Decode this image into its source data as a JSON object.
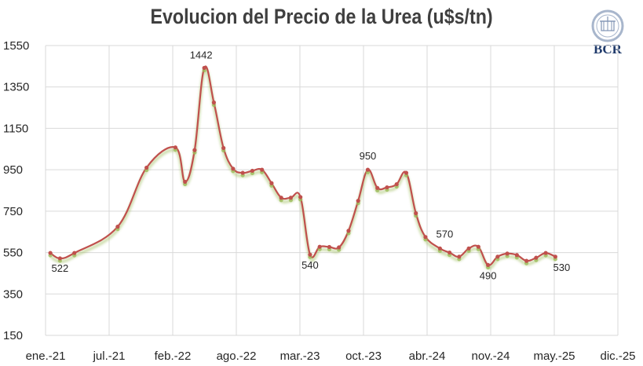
{
  "chart_data": {
    "type": "line",
    "title": "Evolucion del Precio de la Urea (u$s/tn)",
    "xlabel": "",
    "ylabel": "",
    "ylim": [
      150,
      1550
    ],
    "yticks": [
      1550,
      1350,
      1150,
      950,
      750,
      550,
      350,
      150
    ],
    "xticks": [
      "ene.-21",
      "jul.-21",
      "feb.-22",
      "ago.-22",
      "mar.-23",
      "oct.-23",
      "abr.-24",
      "nov.-24",
      "may.-25",
      "dic.-25"
    ],
    "grid": true,
    "legend": "none",
    "series": [
      {
        "color": "#c0504d",
        "points": [
          [
            1,
            548
          ],
          [
            3,
            522
          ],
          [
            6,
            548
          ],
          [
            15,
            675
          ],
          [
            21,
            960
          ],
          [
            27,
            1058
          ],
          [
            29,
            892
          ],
          [
            31,
            1045
          ],
          [
            33,
            1442
          ],
          [
            35,
            1275
          ],
          [
            37,
            1055
          ],
          [
            39,
            955
          ],
          [
            41,
            935
          ],
          [
            43,
            945
          ],
          [
            45,
            950
          ],
          [
            47,
            885
          ],
          [
            49,
            815
          ],
          [
            51,
            815
          ],
          [
            53,
            818
          ],
          [
            55,
            540
          ],
          [
            57,
            578
          ],
          [
            59,
            577
          ],
          [
            61,
            575
          ],
          [
            63,
            655
          ],
          [
            65,
            800
          ],
          [
            67,
            950
          ],
          [
            69,
            862
          ],
          [
            71,
            865
          ],
          [
            73,
            880
          ],
          [
            75,
            935
          ],
          [
            77,
            740
          ],
          [
            79,
            625
          ],
          [
            82,
            570
          ],
          [
            84,
            550
          ],
          [
            86,
            530
          ],
          [
            88,
            570
          ],
          [
            90,
            578
          ],
          [
            92,
            490
          ],
          [
            94,
            530
          ],
          [
            96,
            545
          ],
          [
            98,
            538
          ],
          [
            100,
            510
          ],
          [
            102,
            525
          ],
          [
            104,
            548
          ],
          [
            106,
            530
          ]
        ]
      }
    ],
    "annotations": [
      {
        "text": "522",
        "x": 3,
        "y": 522
      },
      {
        "text": "1442",
        "x": 33,
        "y": 1442
      },
      {
        "text": "540",
        "x": 55,
        "y": 540
      },
      {
        "text": "950",
        "x": 67,
        "y": 950
      },
      {
        "text": "570",
        "x": 82,
        "y": 570
      },
      {
        "text": "490",
        "x": 92,
        "y": 490
      },
      {
        "text": "530",
        "x": 106,
        "y": 530
      }
    ]
  },
  "logo": {
    "text": "BCR",
    "colors": {
      "primary": "#1f3a6b",
      "ring": "#a8b6cc"
    }
  },
  "colors": {
    "line": "#c0504d",
    "marker": "#c0504d",
    "shadow": "#9bbb59",
    "grid": "#d9d9d9",
    "axis_text": "#262626",
    "title": "#3f3f3f"
  }
}
